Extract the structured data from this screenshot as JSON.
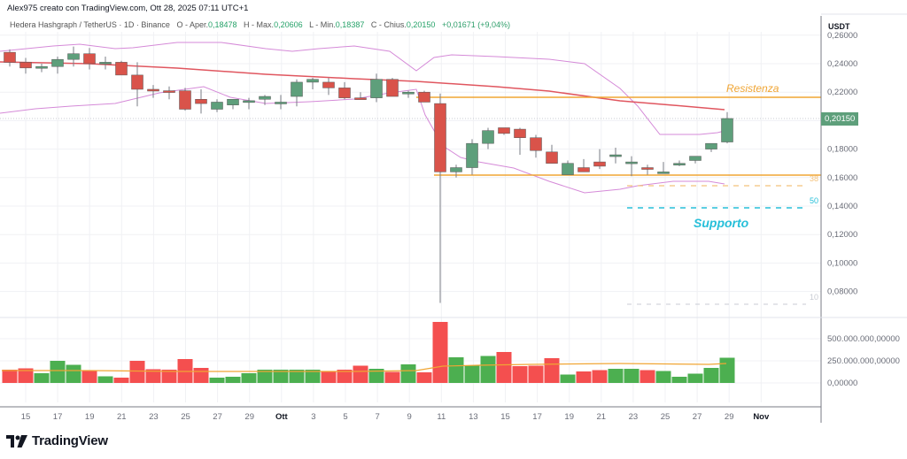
{
  "header": {
    "attribution": "Alex975 creato con TradingView.com, Ott 28, 2025 07:11 UTC+1"
  },
  "legend": {
    "symbol": "Hedera Hashgraph / TetherUS · 1D · Binance",
    "open_label": "O - Aper.",
    "open": "0,18478",
    "high_label": "H - Max.",
    "high": "0,20606",
    "low_label": "L - Min.",
    "low": "0,18387",
    "close_label": "C - Chius.",
    "close": "0,20150",
    "change": "+0,01671 (+9,04%)"
  },
  "price_axis": {
    "currency": "USDT",
    "ticks": [
      "0,26000",
      "0,24000",
      "0,22000",
      "0,18000",
      "0,16000",
      "0,14000",
      "0,12000",
      "0,10000",
      "0,08000"
    ],
    "current_price": "0,20150"
  },
  "volume_axis": {
    "ticks": [
      "500.000.000,00000",
      "250.000.000,00000",
      "0,00000"
    ]
  },
  "time_axis": {
    "ticks": [
      "15",
      "17",
      "19",
      "21",
      "23",
      "25",
      "27",
      "29",
      "Ott",
      "3",
      "5",
      "7",
      "9",
      "11",
      "13",
      "15",
      "17",
      "19",
      "21",
      "23",
      "25",
      "27",
      "29",
      "Nov"
    ]
  },
  "annotations": {
    "resistance": "Resistenza",
    "support": "Supporto",
    "fib_38": "38",
    "fib_50": "50",
    "fib_100": "10"
  },
  "branding": {
    "logo_text": "TradingView"
  },
  "colors": {
    "up": "#5e9f7b",
    "down": "#d9534a",
    "vol_up": "#4caf50",
    "vol_down": "#f44f4f",
    "ma": "#e0565f",
    "bollinger": "#d58ad8",
    "resistance": "#f0a534",
    "support": "#26bfd9"
  },
  "chart_data": {
    "type": "candlestick",
    "title": "Hedera Hashgraph / TetherUS · 1D · Binance",
    "xlabel": "",
    "ylabel": "USDT",
    "ylim": [
      0.065,
      0.265
    ],
    "grid": true,
    "dates": [
      "Sep 13",
      "Sep 14",
      "Sep 15",
      "Sep 16",
      "Sep 17",
      "Sep 18",
      "Sep 19",
      "Sep 20",
      "Sep 21",
      "Sep 22",
      "Sep 23",
      "Sep 24",
      "Sep 25",
      "Sep 26",
      "Sep 27",
      "Sep 28",
      "Sep 29",
      "Sep 30",
      "Oct 1",
      "Oct 2",
      "Oct 3",
      "Oct 4",
      "Oct 5",
      "Oct 6",
      "Oct 7",
      "Oct 8",
      "Oct 9",
      "Oct 10",
      "Oct 11",
      "Oct 12",
      "Oct 13",
      "Oct 14",
      "Oct 15",
      "Oct 16",
      "Oct 17",
      "Oct 18",
      "Oct 19",
      "Oct 20",
      "Oct 21",
      "Oct 22",
      "Oct 23",
      "Oct 24",
      "Oct 25",
      "Oct 26",
      "Oct 27",
      "Oct 28"
    ],
    "open": [
      0.248,
      0.241,
      0.237,
      0.238,
      0.243,
      0.247,
      0.24,
      0.241,
      0.232,
      0.222,
      0.221,
      0.221,
      0.215,
      0.208,
      0.211,
      0.213,
      0.215,
      0.213,
      0.217,
      0.227,
      0.227,
      0.223,
      0.216,
      0.216,
      0.229,
      0.219,
      0.22,
      0.212,
      0.164,
      0.167,
      0.184,
      0.195,
      0.194,
      0.188,
      0.178,
      0.162,
      0.167,
      0.171,
      0.176,
      0.171,
      0.167,
      0.164,
      0.17,
      0.172,
      0.18,
      0.185
    ],
    "high": [
      0.25,
      0.244,
      0.24,
      0.245,
      0.252,
      0.251,
      0.245,
      0.242,
      0.241,
      0.225,
      0.224,
      0.223,
      0.222,
      0.215,
      0.213,
      0.216,
      0.218,
      0.218,
      0.229,
      0.23,
      0.23,
      0.227,
      0.22,
      0.233,
      0.23,
      0.221,
      0.221,
      0.219,
      0.169,
      0.187,
      0.195,
      0.195,
      0.195,
      0.19,
      0.183,
      0.172,
      0.173,
      0.18,
      0.181,
      0.175,
      0.169,
      0.171,
      0.172,
      0.175,
      0.181,
      0.206
    ],
    "low": [
      0.238,
      0.233,
      0.234,
      0.233,
      0.238,
      0.236,
      0.236,
      0.233,
      0.21,
      0.216,
      0.215,
      0.207,
      0.205,
      0.206,
      0.208,
      0.208,
      0.211,
      0.208,
      0.21,
      0.222,
      0.218,
      0.215,
      0.215,
      0.213,
      0.218,
      0.216,
      0.214,
      0.072,
      0.16,
      0.162,
      0.18,
      0.19,
      0.176,
      0.174,
      0.17,
      0.162,
      0.164,
      0.166,
      0.17,
      0.161,
      0.162,
      0.164,
      0.168,
      0.17,
      0.178,
      0.184
    ],
    "close": [
      0.241,
      0.237,
      0.238,
      0.243,
      0.247,
      0.24,
      0.241,
      0.232,
      0.222,
      0.221,
      0.22,
      0.208,
      0.212,
      0.213,
      0.215,
      0.214,
      0.217,
      0.213,
      0.227,
      0.229,
      0.223,
      0.216,
      0.215,
      0.229,
      0.217,
      0.22,
      0.213,
      0.164,
      0.167,
      0.184,
      0.193,
      0.191,
      0.188,
      0.179,
      0.17,
      0.17,
      0.164,
      0.168,
      0.176,
      0.171,
      0.166,
      0.164,
      0.17,
      0.175,
      0.184,
      0.2015
    ],
    "volume_series": {
      "name": "Volume",
      "values": [
        150,
        165,
        110,
        250,
        205,
        140,
        75,
        60,
        250,
        155,
        150,
        270,
        170,
        60,
        70,
        110,
        150,
        150,
        150,
        150,
        125,
        150,
        195,
        160,
        125,
        210,
        120,
        690,
        290,
        195,
        305,
        350,
        190,
        195,
        280,
        95,
        130,
        145,
        160,
        160,
        145,
        135,
        70,
        105,
        170,
        285
      ],
      "unit": "millions",
      "ylim": [
        0,
        650
      ]
    },
    "overlays": [
      {
        "name": "Moving Average (red)",
        "approx_values": [
          0.241,
          0.225,
          0.2075
        ]
      },
      {
        "name": "Bollinger Upper",
        "approx_range": [
          0.226,
          0.253
        ]
      },
      {
        "name": "Bollinger Lower",
        "approx_range": [
          0.147,
          0.215
        ]
      },
      {
        "name": "Resistenza",
        "value": 0.2165
      },
      {
        "name": "Support line (orange)",
        "value": 0.1625
      },
      {
        "name": "Fib 38",
        "value": 0.154
      },
      {
        "name": "Fib 50 / Supporto",
        "value": 0.1385
      },
      {
        "name": "Fib 100",
        "value": 0.0705
      }
    ]
  }
}
